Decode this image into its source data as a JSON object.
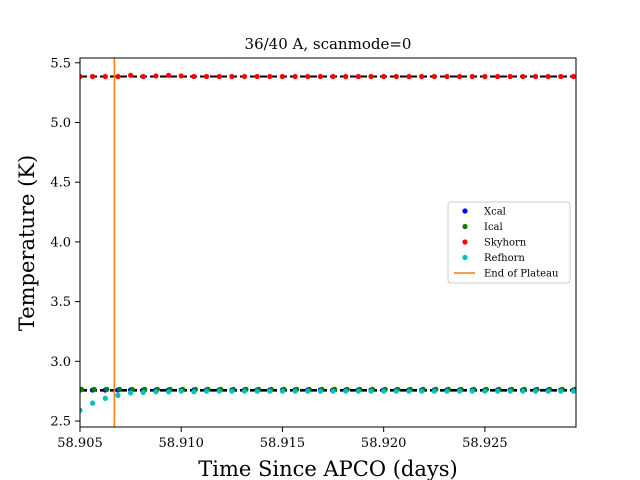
{
  "chart_data": {
    "type": "scatter",
    "title": "36/40 A, scanmode=0",
    "xlabel": "Time Since APCO (days)",
    "ylabel": "Temperature (K)",
    "xlim": [
      58.905,
      58.9295
    ],
    "ylim": [
      2.45,
      5.54
    ],
    "x_ticks": [
      58.905,
      58.91,
      58.915,
      58.92,
      58.925
    ],
    "x_tick_labels": [
      "58.905",
      "58.910",
      "58.915",
      "58.920",
      "58.925"
    ],
    "y_ticks": [
      2.5,
      3.0,
      3.5,
      4.0,
      4.5,
      5.0,
      5.5
    ],
    "y_tick_labels": [
      "2.5",
      "3.0",
      "3.5",
      "4.0",
      "4.5",
      "5.0",
      "5.5"
    ],
    "grid": false,
    "legend_placement": "center-right",
    "x_start": 58.905,
    "x_step": 0.000625,
    "x_count": 40,
    "series": [
      {
        "name": "Xcal",
        "color": "#0000ff",
        "marker": "dot",
        "constant_value": 2.76,
        "dashed_line_value": 2.76
      },
      {
        "name": "Ical",
        "color": "#008000",
        "marker": "dot",
        "constant_value": 2.765,
        "dashed_line_value": 2.755
      },
      {
        "name": "Skyhorn",
        "color": "#ff0000",
        "marker": "dot",
        "constant_value": 5.385,
        "dashed_line_value": 5.385,
        "overrides": {
          "4": 5.395,
          "6": 5.39,
          "7": 5.395,
          "8": 5.39
        }
      },
      {
        "name": "Refhorn",
        "color": "#00bfbf",
        "marker": "dot",
        "constant_value": 2.75,
        "values_head": [
          2.59,
          2.65,
          2.69,
          2.715,
          2.735,
          2.74,
          2.745,
          2.745,
          2.75,
          2.745
        ]
      }
    ],
    "vertical_lines": [
      {
        "name": "End of Plateau",
        "color": "#ff7f0e",
        "x": 58.9067
      }
    ]
  }
}
